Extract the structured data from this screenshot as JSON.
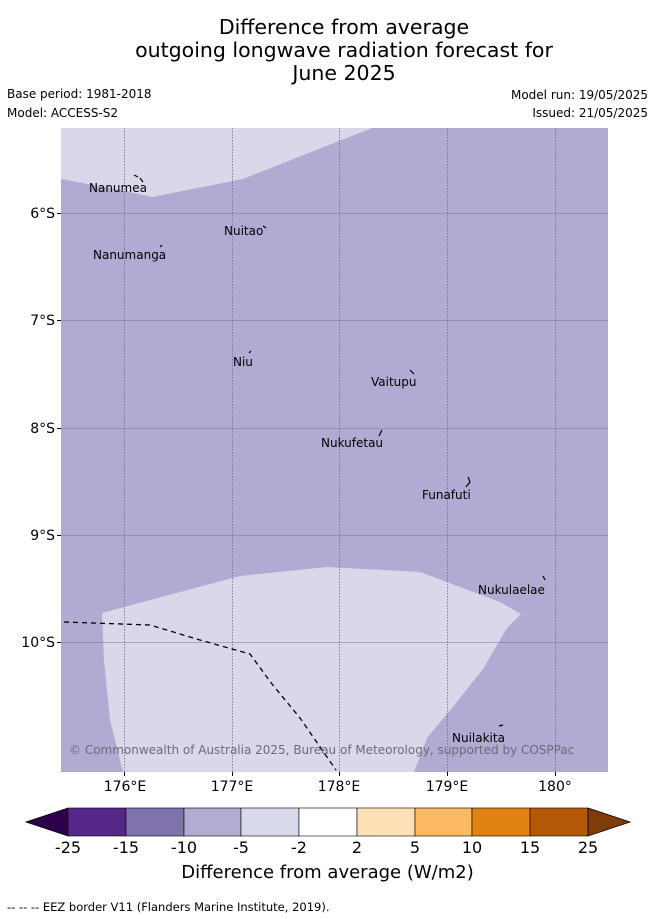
{
  "title": {
    "line1": "Difference from average",
    "line2": "outgoing longwave radiation forecast for",
    "line3": "June 2025"
  },
  "meta": {
    "base_period": "Base period: 1981-2018",
    "model": "Model: ACCESS-S2",
    "model_run": "Model run: 19/05/2025",
    "issued": "Issued: 21/05/2025"
  },
  "map": {
    "lon_ticks": [
      "176°E",
      "177°E",
      "178°E",
      "179°E",
      "180°"
    ],
    "lat_ticks": [
      "6°S",
      "7°S",
      "8°S",
      "9°S",
      "10°S"
    ],
    "places": [
      "Nanumea",
      "Nuitao",
      "Nanumanga",
      "Niu",
      "Vaitupu",
      "Nukufetau",
      "Funafuti",
      "Nukulaelae",
      "Nuilakita"
    ],
    "copyright": "© Commonwealth of Australia 2025, Bureau of Meteorology, supported by COSPPac",
    "colors": {
      "band_minus10_minus5": "#b1abd3",
      "band_minus5_minus2": "#d8d8ea",
      "gridline": "#6d6a86"
    }
  },
  "colorbar": {
    "ticks": [
      "-25",
      "-15",
      "-10",
      "-5",
      "-2",
      "2",
      "5",
      "10",
      "15",
      "25"
    ],
    "colors": [
      "#2d004b",
      "#542788",
      "#8073ac",
      "#b2abd2",
      "#d8daeb",
      "#ffffff",
      "#fee0b6",
      "#fdb863",
      "#e08214",
      "#b35806",
      "#7f3b08"
    ],
    "label": "Difference from average (W/m2)"
  },
  "footer": {
    "eez": "-- -- -- EEZ border V11 (Flanders Marine Institute, 2019)."
  }
}
